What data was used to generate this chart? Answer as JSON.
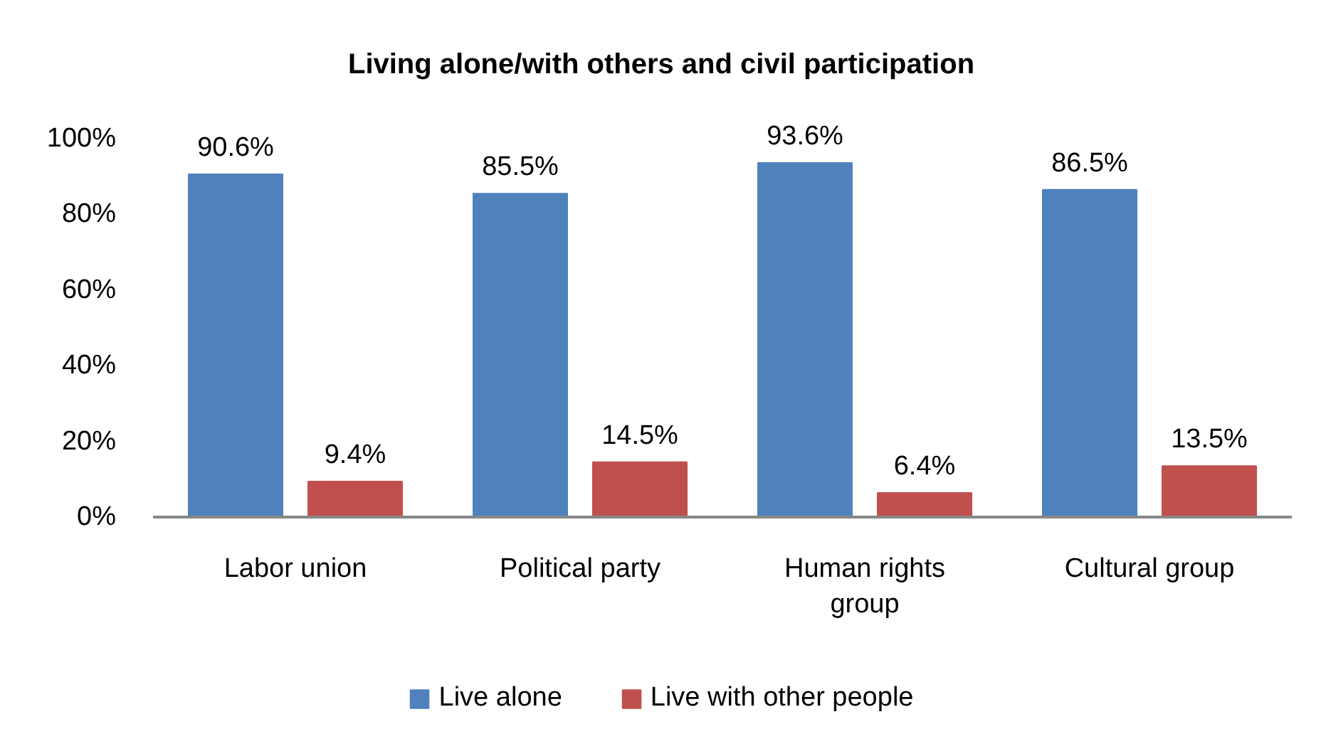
{
  "chart_data": {
    "type": "bar",
    "title": "Living alone/with others and civil participation",
    "categories": [
      "Labor union",
      "Political party",
      "Human rights group",
      "Cultural group"
    ],
    "series": [
      {
        "name": "Live alone",
        "color": "#4f81bd",
        "values": [
          90.6,
          85.5,
          93.6,
          86.5
        ],
        "value_labels": [
          "90.6%",
          "85.5%",
          "93.6%",
          "86.5%"
        ]
      },
      {
        "name": "Live with other people",
        "color": "#c0504d",
        "values": [
          9.4,
          14.5,
          6.4,
          13.5
        ],
        "value_labels": [
          "9.4%",
          "14.5%",
          "6.4%",
          "13.5%"
        ]
      }
    ],
    "ylim": [
      0,
      100
    ],
    "yticks": [
      {
        "value": 0,
        "label": "0%"
      },
      {
        "value": 20,
        "label": "20%"
      },
      {
        "value": 40,
        "label": "40%"
      },
      {
        "value": 60,
        "label": "60%"
      },
      {
        "value": 80,
        "label": "80%"
      },
      {
        "value": 100,
        "label": "100%"
      }
    ],
    "legend": "bottom"
  }
}
